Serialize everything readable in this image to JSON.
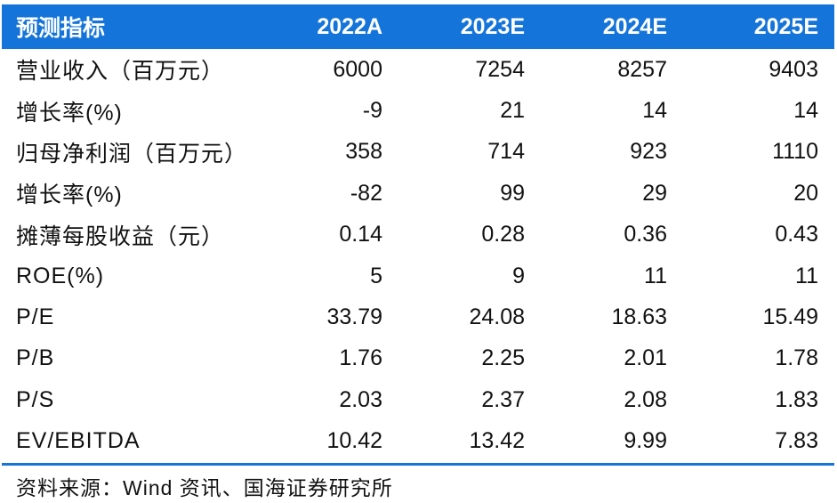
{
  "table": {
    "header": [
      "预测指标",
      "2022A",
      "2023E",
      "2024E",
      "2025E"
    ],
    "rows": [
      [
        "营业收入（百万元）",
        "6000",
        "7254",
        "8257",
        "9403"
      ],
      [
        "增长率(%)",
        "-9",
        "21",
        "14",
        "14"
      ],
      [
        "归母净利润（百万元）",
        "358",
        "714",
        "923",
        "1110"
      ],
      [
        "增长率(%)",
        "-82",
        "99",
        "29",
        "20"
      ],
      [
        "摊薄每股收益（元）",
        "0.14",
        "0.28",
        "0.36",
        "0.43"
      ],
      [
        "ROE(%)",
        "5",
        "9",
        "11",
        "11"
      ],
      [
        "P/E",
        "33.79",
        "24.08",
        "18.63",
        "15.49"
      ],
      [
        "P/B",
        "1.76",
        "2.25",
        "2.01",
        "1.78"
      ],
      [
        "P/S",
        "2.03",
        "2.37",
        "2.08",
        "1.83"
      ],
      [
        "EV/EBITDA",
        "10.42",
        "13.42",
        "9.99",
        "7.83"
      ]
    ]
  },
  "source": "资料来源：Wind 资讯、国海证券研究所",
  "colors": {
    "header_bg": "#1474d9",
    "header_text": "#ffffff",
    "rule": "#1474d9"
  }
}
